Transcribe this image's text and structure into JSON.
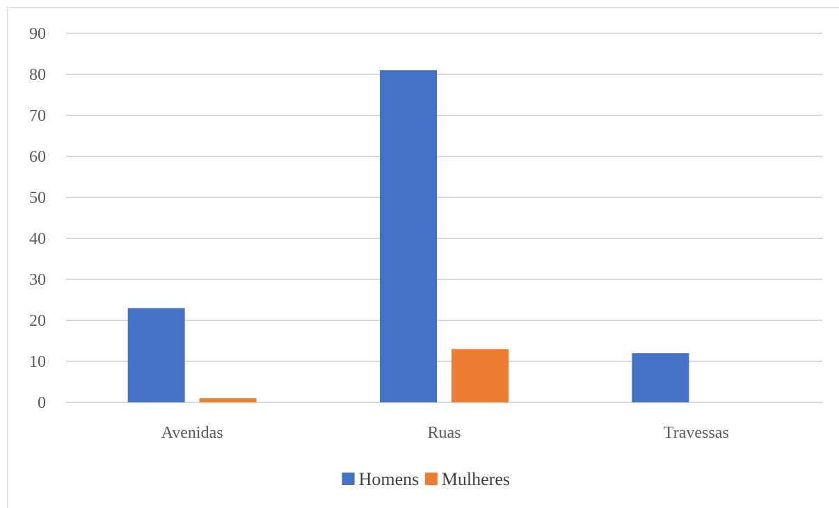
{
  "chart_data": {
    "type": "bar",
    "categories": [
      "Avenidas",
      "Ruas",
      "Travessas"
    ],
    "series": [
      {
        "name": "Homens",
        "values": [
          23,
          81,
          12
        ],
        "color": "#4472C4"
      },
      {
        "name": "Mulheres",
        "values": [
          1,
          13,
          0
        ],
        "color": "#ED7D31"
      }
    ],
    "ylim": [
      0,
      90
    ],
    "yticks": [
      0,
      10,
      20,
      30,
      40,
      50,
      60,
      70,
      80,
      90
    ],
    "grid": true,
    "legend": "bottom-center",
    "gridColor": "#d9d9d9"
  }
}
